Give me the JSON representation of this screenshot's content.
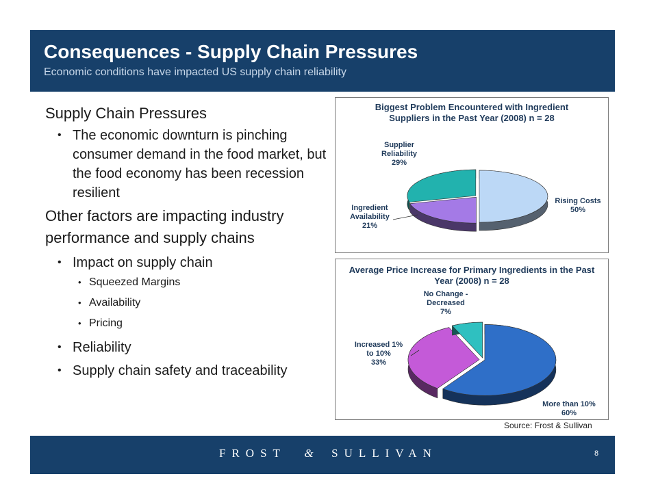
{
  "slide": {
    "title": "Consequences - Supply Chain Pressures",
    "subtitle": "Economic conditions have impacted US supply chain reliability",
    "page_number": "8",
    "source": "Source: Frost & Sullivan",
    "brand": {
      "left": "FROST",
      "amp": "&",
      "right": "SULLIVAN"
    }
  },
  "content": {
    "heading1": "Supply Chain Pressures",
    "bullet1": "The economic downturn is pinching consumer demand in the food market, but the food economy has been recession resilient",
    "heading2": "Other factors are impacting industry performance and supply chains",
    "bullet_impact": "Impact on supply chain",
    "sub_bullets": [
      "Squeezed Margins",
      "Availability",
      "Pricing"
    ],
    "bullet_reliability": "Reliability",
    "bullet_safety": "Supply chain safety and traceability"
  },
  "chart_data": [
    {
      "type": "pie",
      "title": "Biggest Problem Encountered with Ingredient Suppliers in the Past Year (2008) n = 28",
      "categories": [
        "Rising Costs",
        "Ingredient Availability",
        "Supplier Reliability"
      ],
      "values": [
        50,
        21,
        29
      ],
      "labels": {
        "rising": {
          "name": "Rising Costs",
          "pct": "50%"
        },
        "availability": {
          "line1": "Ingredient",
          "line2": "Availability",
          "pct": "21%"
        },
        "reliability": {
          "line1": "Supplier",
          "line2": "Reliability",
          "pct": "29%"
        }
      },
      "colors": [
        "#bcd8f6",
        "#a47ae6",
        "#22b2ae"
      ]
    },
    {
      "type": "pie",
      "title": "Average Price Increase for Primary Ingredients in the Past Year (2008) n = 28",
      "categories": [
        "More than 10%",
        "Increased 1% to 10%",
        "No Change - Decreased"
      ],
      "values": [
        60,
        33,
        7
      ],
      "labels": {
        "more": {
          "name": "More than 10%",
          "pct": "60%"
        },
        "increased": {
          "line1": "Increased 1%",
          "line2": "to 10%",
          "pct": "33%"
        },
        "nochange": {
          "line1": "No Change -",
          "line2": "Decreased",
          "pct": "7%"
        }
      },
      "colors": [
        "#2f6fc8",
        "#c45ad8",
        "#2fc0c0"
      ]
    }
  ]
}
